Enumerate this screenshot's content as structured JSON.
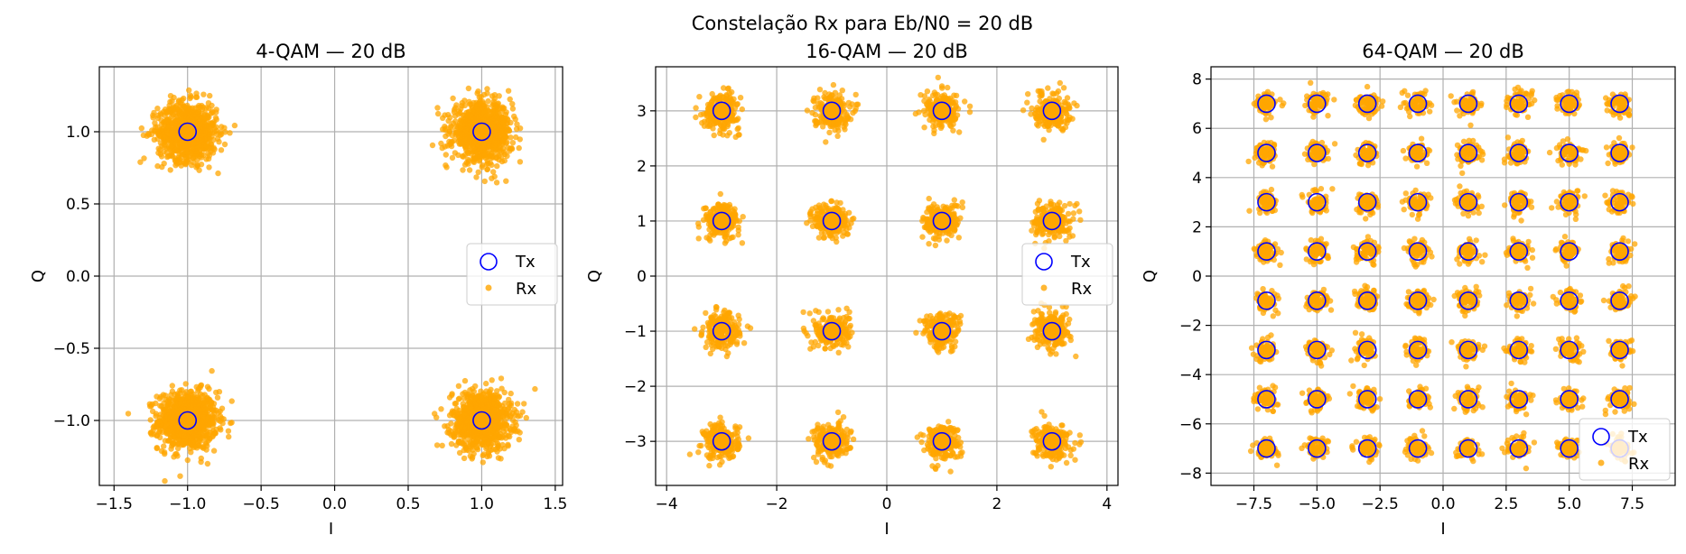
{
  "figure": {
    "suptitle": "Constelação Rx para Eb/N0 = 20 dB",
    "colors": {
      "tx": "#0000ff",
      "rx": "#ffa500",
      "grid": "#b0b0b0"
    }
  },
  "chart_data": [
    {
      "type": "scatter",
      "title": "4-QAM — 20 dB",
      "xlabel": "I",
      "ylabel": "Q",
      "xlim": [
        -1.6,
        1.55
      ],
      "ylim": [
        -1.45,
        1.45
      ],
      "xticks": [
        -1.5,
        -1.0,
        -0.5,
        0.0,
        0.5,
        1.0,
        1.5
      ],
      "xtick_labels": [
        "−1.5",
        "−1.0",
        "−0.5",
        "0.0",
        "0.5",
        "1.0",
        "1.5"
      ],
      "yticks": [
        -1.0,
        -0.5,
        0.0,
        0.5,
        1.0
      ],
      "ytick_labels": [
        "−1.0",
        "−0.5",
        "0.0",
        "0.5",
        "1.0"
      ],
      "grid": true,
      "legend_position": "center-right",
      "levels": [
        -1,
        1
      ],
      "noise_std": 0.1,
      "series": [
        {
          "name": "Tx",
          "marker": "hollow-circle",
          "color": "#0000ff"
        },
        {
          "name": "Rx",
          "marker": "dot",
          "color": "#ffa500"
        }
      ]
    },
    {
      "type": "scatter",
      "title": "16-QAM — 20 dB",
      "xlabel": "I",
      "ylabel": "Q",
      "xlim": [
        -4.2,
        4.2
      ],
      "ylim": [
        -3.8,
        3.8
      ],
      "xticks": [
        -4,
        -2,
        0,
        2,
        4
      ],
      "xtick_labels": [
        "−4",
        "−2",
        "0",
        "2",
        "4"
      ],
      "yticks": [
        -3,
        -2,
        -1,
        0,
        1,
        2,
        3
      ],
      "ytick_labels": [
        "−3",
        "−2",
        "−1",
        "0",
        "1",
        "2",
        "3"
      ],
      "grid": true,
      "legend_position": "center-right",
      "levels": [
        -3,
        -1,
        1,
        3
      ],
      "noise_std": 0.16,
      "series": [
        {
          "name": "Tx",
          "marker": "hollow-circle",
          "color": "#0000ff"
        },
        {
          "name": "Rx",
          "marker": "dot",
          "color": "#ffa500"
        }
      ]
    },
    {
      "type": "scatter",
      "title": "64-QAM — 20 dB",
      "xlabel": "I",
      "ylabel": "Q",
      "xlim": [
        -9.2,
        9.2
      ],
      "ylim": [
        -8.5,
        8.5
      ],
      "xticks": [
        -7.5,
        -5.0,
        -2.5,
        0.0,
        2.5,
        5.0,
        7.5
      ],
      "xtick_labels": [
        "−7.5",
        "−5.0",
        "−2.5",
        "0.0",
        "2.5",
        "5.0",
        "7.5"
      ],
      "yticks": [
        -8,
        -6,
        -4,
        -2,
        0,
        2,
        4,
        6,
        8
      ],
      "ytick_labels": [
        "−8",
        "−6",
        "−4",
        "−2",
        "0",
        "2",
        "4",
        "6",
        "8"
      ],
      "grid": true,
      "legend_position": "lower-right",
      "levels": [
        -7,
        -5,
        -3,
        -1,
        1,
        3,
        5,
        7
      ],
      "noise_std": 0.22,
      "series": [
        {
          "name": "Tx",
          "marker": "hollow-circle",
          "color": "#0000ff"
        },
        {
          "name": "Rx",
          "marker": "dot",
          "color": "#ffa500"
        }
      ]
    }
  ]
}
